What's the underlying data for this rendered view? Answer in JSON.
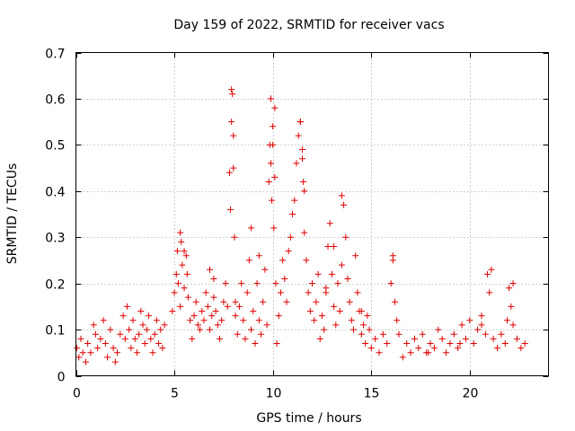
{
  "chart_data": {
    "type": "scatter",
    "title": "Day 159 of 2022, SRMTID for receiver vacs",
    "xlabel": "GPS time / hours",
    "ylabel": "SRMTID / TECUs",
    "xlim": [
      0,
      24
    ],
    "ylim": [
      0,
      0.7
    ],
    "x_ticks": [
      0,
      5,
      10,
      15,
      20
    ],
    "y_ticks": [
      0,
      0.1,
      0.2,
      0.3,
      0.4,
      0.5,
      0.6,
      0.7
    ],
    "x_tick_labels": [
      "0",
      "5",
      "10",
      "15",
      "20"
    ],
    "y_tick_labels": [
      "0",
      "0.1",
      "0.2",
      "0.3",
      "0.4",
      "0.5",
      "0.6",
      "0.7"
    ],
    "grid": true,
    "marker": "+",
    "color": "#e00000",
    "series": [
      {
        "name": "SRMTID",
        "x": [
          0.05,
          0.15,
          0.25,
          0.35,
          0.5,
          0.6,
          0.75,
          0.9,
          1.0,
          1.1,
          1.25,
          1.4,
          1.5,
          1.6,
          1.75,
          1.9,
          2.0,
          2.1,
          2.25,
          2.4,
          2.5,
          2.6,
          2.7,
          2.8,
          2.9,
          3.0,
          3.1,
          3.2,
          3.3,
          3.4,
          3.5,
          3.6,
          3.7,
          3.8,
          3.9,
          4.0,
          4.1,
          4.2,
          4.3,
          4.4,
          4.5,
          4.9,
          5.0,
          5.1,
          5.15,
          5.2,
          5.3,
          5.35,
          5.4,
          5.5,
          5.6,
          5.65,
          5.7,
          5.8,
          5.9,
          6.0,
          6.1,
          6.2,
          6.3,
          6.4,
          6.5,
          6.6,
          6.7,
          6.8,
          6.9,
          7.0,
          7.1,
          7.2,
          7.3,
          7.4,
          7.5,
          7.6,
          7.7,
          7.8,
          7.85,
          7.9,
          7.95,
          8.0,
          8.05,
          8.1,
          8.2,
          8.3,
          8.4,
          8.5,
          8.6,
          8.7,
          8.8,
          8.9,
          9.0,
          9.1,
          9.2,
          9.3,
          9.4,
          9.5,
          9.6,
          9.7,
          9.8,
          9.85,
          9.9,
          9.95,
          10.0,
          10.05,
          10.1,
          10.15,
          10.2,
          10.3,
          10.4,
          10.5,
          10.6,
          10.7,
          10.8,
          10.9,
          11.0,
          11.1,
          11.2,
          11.3,
          11.4,
          11.5,
          11.55,
          11.6,
          11.7,
          11.8,
          11.9,
          12.0,
          12.1,
          12.2,
          12.3,
          12.4,
          12.5,
          12.6,
          12.7,
          12.8,
          12.9,
          13.0,
          13.1,
          13.2,
          13.3,
          13.4,
          13.5,
          13.6,
          13.7,
          13.8,
          13.9,
          14.0,
          14.1,
          14.2,
          14.3,
          14.4,
          14.5,
          14.6,
          14.7,
          14.8,
          14.9,
          15.0,
          15.2,
          15.4,
          15.6,
          15.8,
          16.0,
          16.1,
          16.2,
          16.3,
          16.4,
          16.6,
          16.8,
          17.0,
          17.2,
          17.4,
          17.6,
          17.8,
          18.0,
          18.2,
          18.4,
          18.6,
          18.8,
          19.0,
          19.2,
          19.4,
          19.6,
          19.8,
          20.0,
          20.2,
          20.4,
          20.6,
          20.8,
          20.9,
          21.0,
          21.2,
          21.4,
          21.6,
          21.8,
          21.9,
          22.0,
          22.1,
          22.2,
          22.4,
          22.6,
          22.8,
          7.9,
          8.0,
          8.1,
          9.9,
          10.0,
          10.1,
          11.4,
          11.5,
          11.6,
          5.3,
          5.5,
          6.8,
          7.0,
          8.9,
          9.3,
          12.7,
          13.1,
          13.5,
          14.5,
          16.1,
          17.9,
          19.5,
          20.6,
          21.1,
          22.2
        ],
        "y": [
          0.06,
          0.04,
          0.08,
          0.05,
          0.03,
          0.07,
          0.05,
          0.11,
          0.09,
          0.06,
          0.08,
          0.12,
          0.07,
          0.04,
          0.1,
          0.06,
          0.03,
          0.05,
          0.09,
          0.13,
          0.08,
          0.15,
          0.1,
          0.06,
          0.12,
          0.08,
          0.05,
          0.09,
          0.14,
          0.11,
          0.07,
          0.1,
          0.13,
          0.08,
          0.05,
          0.09,
          0.12,
          0.07,
          0.1,
          0.06,
          0.11,
          0.14,
          0.18,
          0.22,
          0.27,
          0.2,
          0.15,
          0.29,
          0.24,
          0.19,
          0.26,
          0.22,
          0.17,
          0.12,
          0.08,
          0.13,
          0.16,
          0.11,
          0.1,
          0.14,
          0.12,
          0.18,
          0.15,
          0.1,
          0.13,
          0.17,
          0.14,
          0.11,
          0.08,
          0.12,
          0.16,
          0.2,
          0.15,
          0.44,
          0.36,
          0.55,
          0.61,
          0.52,
          0.3,
          0.13,
          0.09,
          0.15,
          0.2,
          0.12,
          0.08,
          0.18,
          0.25,
          0.1,
          0.14,
          0.07,
          0.2,
          0.12,
          0.09,
          0.16,
          0.23,
          0.11,
          0.42,
          0.5,
          0.46,
          0.38,
          0.54,
          0.32,
          0.58,
          0.2,
          0.07,
          0.13,
          0.18,
          0.25,
          0.21,
          0.16,
          0.27,
          0.3,
          0.35,
          0.38,
          0.46,
          0.52,
          0.55,
          0.49,
          0.42,
          0.31,
          0.25,
          0.18,
          0.14,
          0.2,
          0.12,
          0.16,
          0.22,
          0.08,
          0.13,
          0.1,
          0.18,
          0.28,
          0.33,
          0.22,
          0.15,
          0.11,
          0.2,
          0.14,
          0.24,
          0.37,
          0.3,
          0.21,
          0.16,
          0.12,
          0.1,
          0.26,
          0.18,
          0.14,
          0.09,
          0.11,
          0.07,
          0.13,
          0.1,
          0.06,
          0.08,
          0.05,
          0.09,
          0.07,
          0.2,
          0.25,
          0.16,
          0.12,
          0.09,
          0.04,
          0.07,
          0.05,
          0.08,
          0.06,
          0.09,
          0.05,
          0.07,
          0.06,
          0.1,
          0.08,
          0.05,
          0.07,
          0.09,
          0.06,
          0.11,
          0.08,
          0.12,
          0.07,
          0.1,
          0.13,
          0.09,
          0.22,
          0.18,
          0.08,
          0.06,
          0.09,
          0.07,
          0.12,
          0.19,
          0.15,
          0.11,
          0.08,
          0.06,
          0.07,
          0.62,
          0.45,
          0.16,
          0.6,
          0.5,
          0.43,
          0.55,
          0.47,
          0.4,
          0.31,
          0.27,
          0.23,
          0.21,
          0.32,
          0.26,
          0.19,
          0.28,
          0.39,
          0.14,
          0.26,
          0.05,
          0.07,
          0.11,
          0.23,
          0.2
        ]
      }
    ]
  }
}
